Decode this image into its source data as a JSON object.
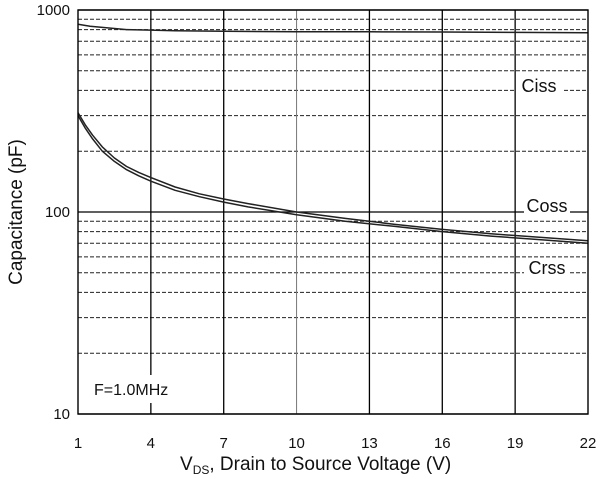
{
  "chart_data": {
    "type": "line",
    "title": "",
    "xlabel_sub": "DS",
    "xlabel_rest": ", Drain to Source Voltage (V)",
    "ylabel": "Capacitance (pF)",
    "xlim": [
      1,
      22
    ],
    "ylim": [
      10,
      1000
    ],
    "yscale": "log",
    "grid": true,
    "x_ticks": [
      1,
      4,
      7,
      10,
      13,
      16,
      19,
      22
    ],
    "y_ticks": [
      10,
      100,
      1000
    ],
    "annotation": "F=1.0MHz",
    "series": [
      {
        "name": "Ciss",
        "x": [
          1,
          1.5,
          2,
          3,
          4,
          5,
          7,
          10,
          13,
          16,
          19,
          22
        ],
        "y": [
          850,
          830,
          820,
          800,
          795,
          790,
          785,
          780,
          780,
          778,
          775,
          772
        ]
      },
      {
        "name": "Coss",
        "x": [
          1,
          1.3,
          1.6,
          2,
          2.5,
          3,
          3.5,
          4,
          5,
          6,
          7,
          8,
          10,
          12,
          14,
          16,
          18,
          20,
          22
        ],
        "y": [
          310,
          270,
          240,
          210,
          185,
          168,
          157,
          148,
          133,
          123,
          116,
          110,
          100,
          93,
          87,
          82,
          78,
          75,
          72
        ]
      },
      {
        "name": "Crss",
        "x": [
          1,
          1.3,
          1.6,
          2,
          2.5,
          3,
          3.5,
          4,
          5,
          6,
          7,
          8,
          10,
          12,
          14,
          16,
          18,
          20,
          22
        ],
        "y": [
          300,
          260,
          230,
          200,
          178,
          162,
          151,
          142,
          128,
          119,
          112,
          106,
          97,
          90,
          85,
          80,
          76,
          73,
          70
        ]
      }
    ]
  }
}
